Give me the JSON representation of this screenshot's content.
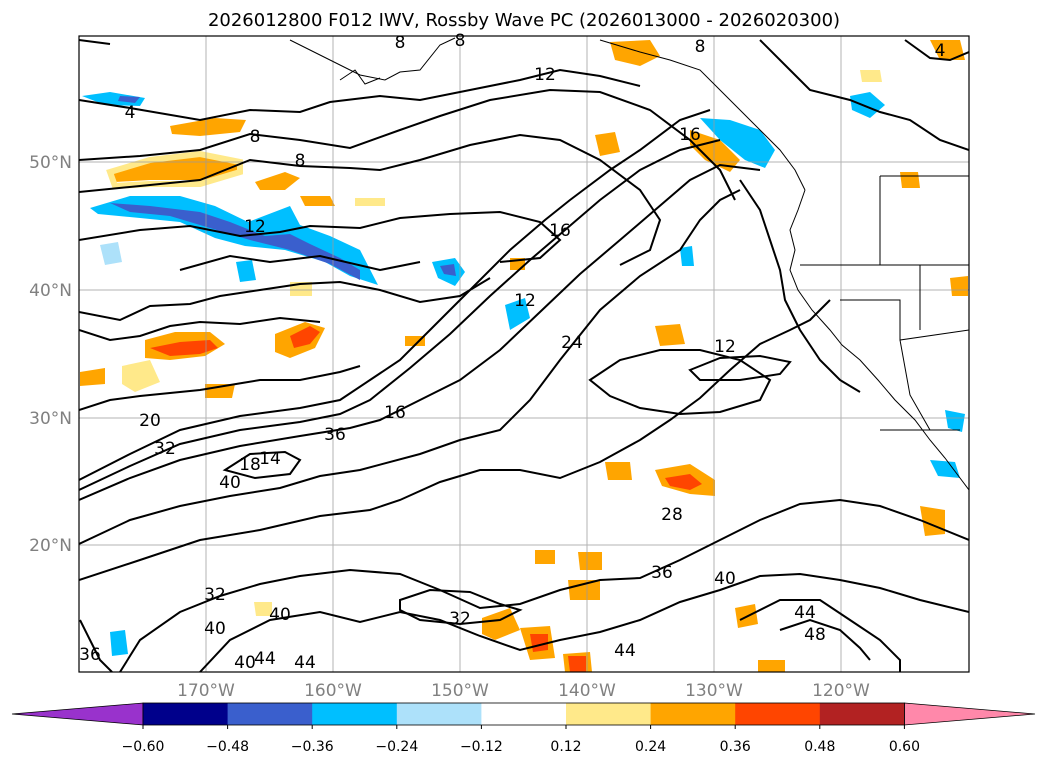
{
  "title": "2026012800 F012 IWV, Rossby Wave PC (2026013000 - 2026020300)",
  "lat_labels": [
    "50°N",
    "40°N",
    "30°N",
    "20°N"
  ],
  "lon_labels": [
    "170°W",
    "160°W",
    "150°W",
    "140°W",
    "130°W",
    "120°W"
  ],
  "colorbar": {
    "ticks": [
      "−0.60",
      "−0.48",
      "−0.36",
      "−0.24",
      "−0.12",
      "0.12",
      "0.24",
      "0.36",
      "0.48",
      "0.60"
    ],
    "colors": [
      "#9932CC",
      "#00008B",
      "#3A5FCD",
      "#00BFFF",
      "#ADE1FA",
      "#FFFFFF",
      "#FFE98A",
      "#FFA500",
      "#FF4500",
      "#B22222",
      "#FF88AA"
    ]
  },
  "contour_labels": [
    "12",
    "8",
    "8",
    "8",
    "8",
    "4",
    "12",
    "16",
    "16",
    "12",
    "24",
    "12",
    "20",
    "32",
    "36",
    "16",
    "18",
    "14",
    "40",
    "28",
    "36",
    "40",
    "32",
    "40",
    "40",
    "32",
    "44",
    "48",
    "44",
    "36",
    "44",
    "40",
    "44",
    "4",
    "8"
  ]
}
